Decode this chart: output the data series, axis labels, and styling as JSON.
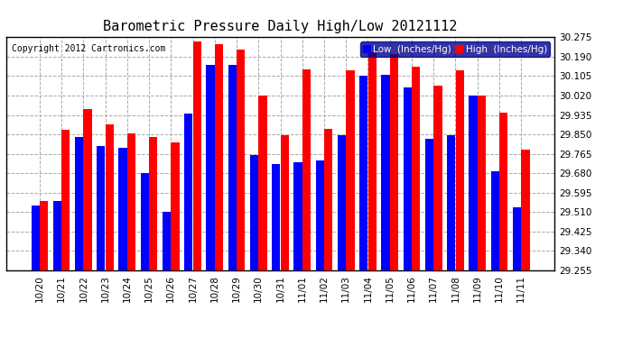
{
  "title": "Barometric Pressure Daily High/Low 20121112",
  "copyright": "Copyright 2012 Cartronics.com",
  "legend_low": "Low  (Inches/Hg)",
  "legend_high": "High  (Inches/Hg)",
  "dates": [
    "10/20",
    "10/21",
    "10/22",
    "10/23",
    "10/24",
    "10/25",
    "10/26",
    "10/27",
    "10/28",
    "10/29",
    "10/30",
    "10/31",
    "11/01",
    "11/02",
    "11/03",
    "11/04",
    "11/05",
    "11/06",
    "11/07",
    "11/08",
    "11/09",
    "11/10",
    "11/11"
  ],
  "low_values": [
    29.54,
    29.56,
    29.84,
    29.8,
    29.79,
    29.68,
    29.51,
    29.94,
    30.155,
    30.155,
    29.76,
    29.72,
    29.73,
    29.735,
    29.845,
    30.105,
    30.11,
    30.055,
    29.83,
    29.845,
    30.02,
    29.69,
    29.53
  ],
  "high_values": [
    29.56,
    29.87,
    29.96,
    29.895,
    29.855,
    29.84,
    29.815,
    30.255,
    30.245,
    30.22,
    30.02,
    29.845,
    30.135,
    29.875,
    30.13,
    30.21,
    30.2,
    30.145,
    30.065,
    30.13,
    30.02,
    29.945,
    29.785
  ],
  "ylim_min": 29.255,
  "ylim_max": 30.275,
  "yticks": [
    29.255,
    29.34,
    29.425,
    29.51,
    29.595,
    29.68,
    29.765,
    29.85,
    29.935,
    30.02,
    30.105,
    30.19,
    30.275
  ],
  "bar_color_low": "#0000ff",
  "bar_color_high": "#ff0000",
  "background_color": "#ffffff",
  "grid_color": "#aaaaaa",
  "title_fontsize": 11,
  "copyright_fontsize": 7,
  "legend_fontsize": 7.5,
  "tick_fontsize": 7.5
}
